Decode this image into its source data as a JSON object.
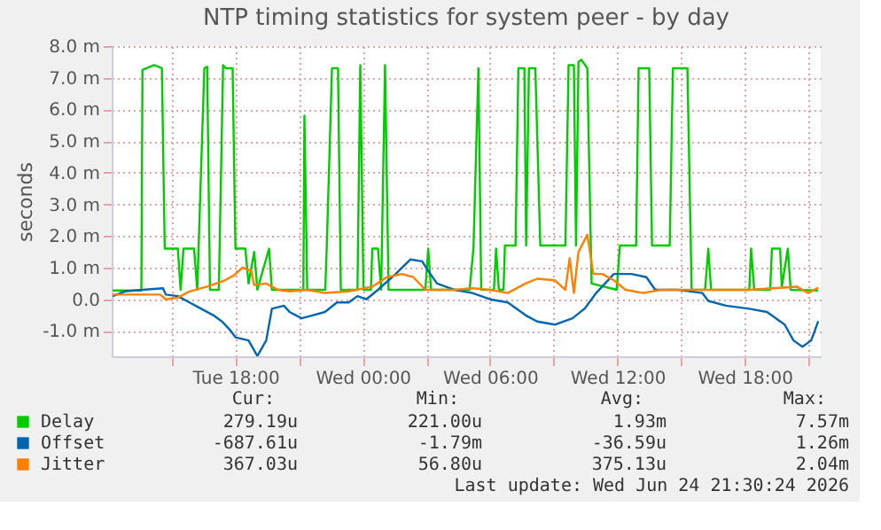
{
  "chart_data": {
    "type": "line",
    "title": "NTP timing statistics for system peer - by day",
    "ylabel": "seconds",
    "xlim": [
      "2026-06-23T12:10",
      "2026-06-24T21:35"
    ],
    "xticks": [
      {
        "value": "2026-06-23T15:00",
        "label": null
      },
      {
        "value": "2026-06-23T18:00",
        "label": "Tue 18:00"
      },
      {
        "value": "2026-06-23T21:00",
        "label": null
      },
      {
        "value": "2026-06-24T00:00",
        "label": "Wed 00:00"
      },
      {
        "value": "2026-06-24T03:00",
        "label": null
      },
      {
        "value": "2026-06-24T06:00",
        "label": "Wed 06:00"
      },
      {
        "value": "2026-06-24T09:00",
        "label": null
      },
      {
        "value": "2026-06-24T12:00",
        "label": "Wed 12:00"
      },
      {
        "value": "2026-06-24T15:00",
        "label": null
      },
      {
        "value": "2026-06-24T18:00",
        "label": "Wed 18:00"
      },
      {
        "value": "2026-06-24T21:00",
        "label": null
      }
    ],
    "ylim": [
      -1.8,
      8.0
    ],
    "yticks": [
      {
        "value": -1,
        "label": "-1.0 m"
      },
      {
        "value": 0,
        "label": "0.0"
      },
      {
        "value": 1,
        "label": "1.0 m"
      },
      {
        "value": 2,
        "label": "2.0 m"
      },
      {
        "value": 3,
        "label": "3.0 m"
      },
      {
        "value": 4,
        "label": "4.0 m"
      },
      {
        "value": 5,
        "label": "5.0 m"
      },
      {
        "value": 6,
        "label": "6.0 m"
      },
      {
        "value": 7,
        "label": "7.0 m"
      },
      {
        "value": 8,
        "label": "8.0 m"
      }
    ],
    "grid": true,
    "legend": "bottom",
    "marker": "none",
    "line_style": "solid",
    "series": [
      {
        "name": "Delay",
        "color": "#00cc00",
        "x": [
          "2026-06-23T12:13",
          "2026-06-23T13:34",
          "2026-06-23T13:37",
          "2026-06-23T14:10",
          "2026-06-23T14:32",
          "2026-06-23T14:40",
          "2026-06-23T15:17",
          "2026-06-23T15:25",
          "2026-06-23T15:33",
          "2026-06-23T16:03",
          "2026-06-23T16:12",
          "2026-06-23T16:32",
          "2026-06-23T16:40",
          "2026-06-23T16:48",
          "2026-06-23T17:13",
          "2026-06-23T17:25",
          "2026-06-23T17:33",
          "2026-06-23T17:52",
          "2026-06-23T18:00",
          "2026-06-23T18:28",
          "2026-06-23T18:37",
          "2026-06-23T18:53",
          "2026-06-23T19:02",
          "2026-06-23T19:35",
          "2026-06-23T19:43",
          "2026-06-23T21:12",
          "2026-06-23T21:15",
          "2026-06-23T21:23",
          "2026-06-23T22:14",
          "2026-06-23T22:18",
          "2026-06-23T22:33",
          "2026-06-23T22:50",
          "2026-06-23T22:58",
          "2026-06-23T23:45",
          "2026-06-23T23:53",
          "2026-06-24T00:02",
          "2026-06-24T00:23",
          "2026-06-24T00:27",
          "2026-06-24T00:43",
          "2026-06-24T00:52",
          "2026-06-24T01:03",
          "2026-06-24T01:13",
          "2026-06-24T02:57",
          "2026-06-24T03:05",
          "2026-06-24T03:13",
          "2026-06-24T05:02",
          "2026-06-24T05:13",
          "2026-06-24T05:27",
          "2026-06-24T05:35",
          "2026-06-24T06:11",
          "2026-06-24T06:17",
          "2026-06-24T06:25",
          "2026-06-24T06:38",
          "2026-06-24T06:42",
          "2026-06-24T07:12",
          "2026-06-24T07:20",
          "2026-06-24T07:37",
          "2026-06-24T07:42",
          "2026-06-24T07:50",
          "2026-06-24T08:08",
          "2026-06-24T08:22",
          "2026-06-24T09:33",
          "2026-06-24T09:42",
          "2026-06-24T09:57",
          "2026-06-24T10:03",
          "2026-06-24T10:10",
          "2026-06-24T10:18",
          "2026-06-24T10:35",
          "2026-06-24T10:47",
          "2026-06-24T11:58",
          "2026-06-24T12:07",
          "2026-06-24T12:53",
          "2026-06-24T13:00",
          "2026-06-24T13:30",
          "2026-06-24T13:38",
          "2026-06-24T14:28",
          "2026-06-24T14:37",
          "2026-06-24T15:18",
          "2026-06-24T15:30",
          "2026-06-24T16:08",
          "2026-06-24T16:17",
          "2026-06-24T16:25",
          "2026-06-24T18:13",
          "2026-06-24T18:18",
          "2026-06-24T18:27",
          "2026-06-24T19:12",
          "2026-06-24T19:17",
          "2026-06-24T19:40",
          "2026-06-24T19:45",
          "2026-06-24T20:02",
          "2026-06-24T20:10",
          "2026-06-24T21:28"
        ],
        "values": [
          0.28,
          0.28,
          7.25,
          7.4,
          7.3,
          1.6,
          1.6,
          0.3,
          1.6,
          1.6,
          0.3,
          7.3,
          7.35,
          0.3,
          0.3,
          7.4,
          7.3,
          7.3,
          1.6,
          1.6,
          0.5,
          1.5,
          0.3,
          1.6,
          0.3,
          0.3,
          5.8,
          0.3,
          0.3,
          1.6,
          7.3,
          7.3,
          0.3,
          0.3,
          7.4,
          0.3,
          0.3,
          1.6,
          1.6,
          0.3,
          7.4,
          0.3,
          0.3,
          1.6,
          0.3,
          0.3,
          1.6,
          7.3,
          0.3,
          0.3,
          1.6,
          0.3,
          0.3,
          1.7,
          1.7,
          7.3,
          7.3,
          1.7,
          7.3,
          7.3,
          1.7,
          1.7,
          7.4,
          7.4,
          1.7,
          7.5,
          7.57,
          7.3,
          0.5,
          0.3,
          1.7,
          1.7,
          7.3,
          7.3,
          1.7,
          1.7,
          7.3,
          7.3,
          0.3,
          0.3,
          1.6,
          0.3,
          0.3,
          1.6,
          0.3,
          0.3,
          1.6,
          1.6,
          0.4,
          1.6,
          0.3,
          0.28
        ]
      },
      {
        "name": "Offset",
        "color": "#0066b3",
        "x": [
          "2026-06-23T12:13",
          "2026-06-23T12:47",
          "2026-06-23T13:37",
          "2026-06-23T14:35",
          "2026-06-23T14:43",
          "2026-06-23T15:17",
          "2026-06-23T15:50",
          "2026-06-23T16:23",
          "2026-06-23T16:57",
          "2026-06-23T17:22",
          "2026-06-23T17:47",
          "2026-06-23T18:00",
          "2026-06-23T18:37",
          "2026-06-23T19:02",
          "2026-06-23T19:27",
          "2026-06-23T19:43",
          "2026-06-23T20:17",
          "2026-06-23T20:33",
          "2026-06-23T21:07",
          "2026-06-23T21:40",
          "2026-06-23T22:13",
          "2026-06-23T22:47",
          "2026-06-23T23:20",
          "2026-06-23T23:45",
          "2026-06-24T00:10",
          "2026-06-24T00:43",
          "2026-06-24T01:33",
          "2026-06-24T02:15",
          "2026-06-24T02:48",
          "2026-06-24T03:05",
          "2026-06-24T03:30",
          "2026-06-24T04:20",
          "2026-06-24T05:10",
          "2026-06-24T06:00",
          "2026-06-24T06:50",
          "2026-06-24T07:40",
          "2026-06-24T08:13",
          "2026-06-24T09:03",
          "2026-06-24T09:53",
          "2026-06-24T10:27",
          "2026-06-24T11:00",
          "2026-06-24T11:50",
          "2026-06-24T12:40",
          "2026-06-24T13:22",
          "2026-06-24T13:47",
          "2026-06-24T14:53",
          "2026-06-24T16:00",
          "2026-06-24T16:17",
          "2026-06-24T17:07",
          "2026-06-24T18:13",
          "2026-06-24T19:03",
          "2026-06-24T19:53",
          "2026-06-24T20:18",
          "2026-06-24T20:43",
          "2026-06-24T21:08",
          "2026-06-24T21:28"
        ],
        "values": [
          0.1,
          0.25,
          0.3,
          0.35,
          0.15,
          0.1,
          -0.1,
          -0.3,
          -0.5,
          -0.7,
          -1.0,
          -1.2,
          -1.3,
          -1.79,
          -1.3,
          -0.3,
          -0.2,
          -0.4,
          -0.6,
          -0.5,
          -0.4,
          -0.1,
          -0.1,
          0.1,
          0.0,
          0.3,
          0.8,
          1.26,
          1.2,
          0.9,
          0.5,
          0.3,
          0.2,
          0.0,
          -0.1,
          -0.5,
          -0.7,
          -0.8,
          -0.6,
          -0.3,
          0.2,
          0.8,
          0.8,
          0.7,
          0.3,
          0.3,
          0.2,
          -0.05,
          -0.2,
          -0.3,
          -0.4,
          -0.8,
          -1.3,
          -1.5,
          -1.3,
          -0.69
        ]
      },
      {
        "name": "Jitter",
        "color": "#ff8000",
        "x": [
          "2026-06-23T12:13",
          "2026-06-23T14:27",
          "2026-06-23T14:43",
          "2026-06-23T15:17",
          "2026-06-23T15:50",
          "2026-06-23T16:40",
          "2026-06-23T17:30",
          "2026-06-23T17:55",
          "2026-06-23T18:20",
          "2026-06-23T18:45",
          "2026-06-23T18:53",
          "2026-06-23T19:27",
          "2026-06-23T20:00",
          "2026-06-23T20:33",
          "2026-06-23T21:23",
          "2026-06-23T22:13",
          "2026-06-23T23:20",
          "2026-06-24T00:27",
          "2026-06-24T01:08",
          "2026-06-24T01:50",
          "2026-06-24T02:23",
          "2026-06-24T02:57",
          "2026-06-24T03:30",
          "2026-06-24T04:20",
          "2026-06-24T05:10",
          "2026-06-24T06:00",
          "2026-06-24T06:50",
          "2026-06-24T07:40",
          "2026-06-24T08:13",
          "2026-06-24T09:03",
          "2026-06-24T09:33",
          "2026-06-24T09:45",
          "2026-06-24T09:57",
          "2026-06-24T10:10",
          "2026-06-24T10:35",
          "2026-06-24T10:52",
          "2026-06-24T11:17",
          "2026-06-24T11:50",
          "2026-06-24T12:23",
          "2026-06-24T13:13",
          "2026-06-24T14:03",
          "2026-06-24T14:53",
          "2026-06-24T16:00",
          "2026-06-24T17:07",
          "2026-06-24T18:13",
          "2026-06-24T19:20",
          "2026-06-24T20:27",
          "2026-06-24T21:00",
          "2026-06-24T21:28"
        ],
        "values": [
          0.15,
          0.15,
          0.0,
          0.05,
          0.25,
          0.4,
          0.6,
          0.75,
          1.0,
          0.9,
          0.45,
          0.5,
          0.3,
          0.25,
          0.3,
          0.2,
          0.25,
          0.4,
          0.7,
          0.8,
          0.7,
          0.3,
          0.3,
          0.3,
          0.35,
          0.3,
          0.2,
          0.5,
          0.65,
          0.6,
          0.3,
          1.3,
          0.2,
          1.5,
          2.04,
          0.8,
          0.8,
          0.6,
          0.3,
          0.2,
          0.3,
          0.3,
          0.3,
          0.3,
          0.3,
          0.35,
          0.4,
          0.2,
          0.37
        ]
      }
    ],
    "annotations": [
      "Cur:",
      "Min:",
      "Avg:",
      "Max:",
      "279.19u",
      "221.00u",
      "1.93m",
      "7.57m",
      "-687.61u",
      "-1.79m",
      "-36.59u",
      "1.26m",
      "367.03u",
      "56.80u",
      "375.13u",
      "2.04m",
      "Last update: Wed Jun 24 21:30:24 2026"
    ]
  }
}
